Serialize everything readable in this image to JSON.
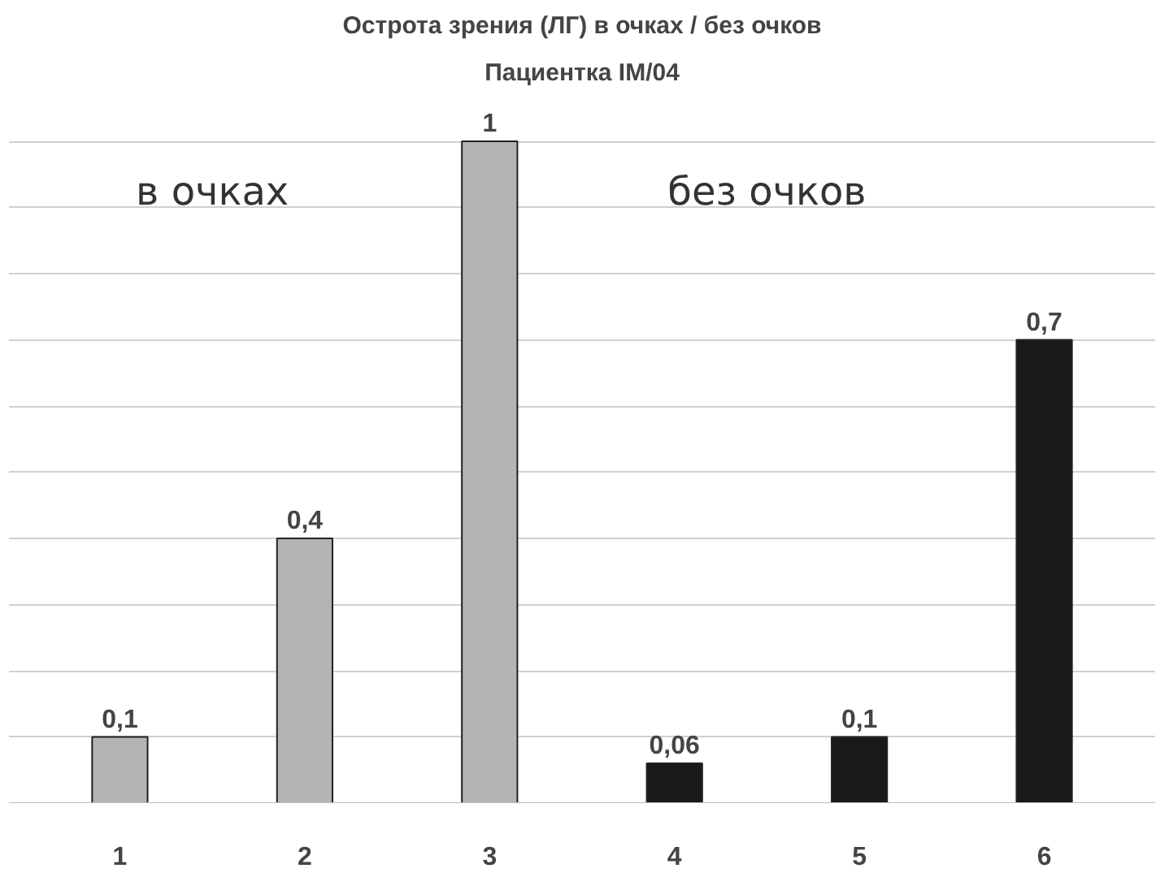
{
  "chart_data": {
    "type": "bar",
    "title": "Острота зрения (ЛГ) в очках / без очков",
    "subtitle": "Пациентка IM/04",
    "categories": [
      "1",
      "2",
      "3",
      "4",
      "5",
      "6"
    ],
    "values": [
      0.1,
      0.4,
      1,
      0.06,
      0.1,
      0.7
    ],
    "colors": [
      "#b4b4b4",
      "#b4b4b4",
      "#b4b4b4",
      "#1a1a1a",
      "#1a1a1a",
      "#1a1a1a"
    ],
    "value_labels": [
      "0,1",
      "0,4",
      "1",
      "0,06",
      "0,1",
      "0,7"
    ],
    "yticks": [
      {
        "value": 0.1,
        "label": null
      },
      {
        "value": 0.2,
        "label": null
      },
      {
        "value": 0.3,
        "label": null
      },
      {
        "value": 0.4,
        "label": null
      },
      {
        "value": 0.5,
        "label": null
      },
      {
        "value": 0.6,
        "label": null
      },
      {
        "value": 0.7,
        "label": null
      },
      {
        "value": 0.8,
        "label": null
      },
      {
        "value": 0.9,
        "label": null
      },
      {
        "value": 1,
        "label": null
      }
    ],
    "grid": "y",
    "tick_labels": "x",
    "annotations": [
      "в очках",
      "без очков"
    ]
  }
}
